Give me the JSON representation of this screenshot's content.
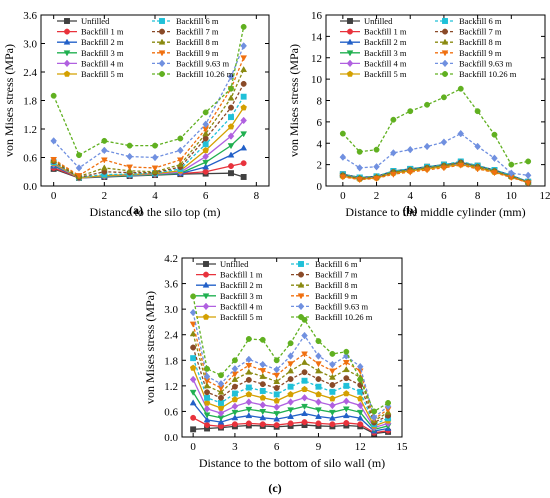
{
  "legend_entries": [
    "Unfilled",
    "Backfill 1 m",
    "Backfill 2 m",
    "Backfill 3 m",
    "Backfill 4 m",
    "Backfill 5 m",
    "Backfill 6 m",
    "Backfill 7 m",
    "Backfill 8 m",
    "Backfill 9 m",
    "Backfill 9.63 m",
    "Backfill 10.26 m"
  ],
  "series_style": [
    {
      "color": "#404040",
      "marker": "square",
      "dash": false
    },
    {
      "color": "#e8323c",
      "marker": "circle",
      "dash": false
    },
    {
      "color": "#2260c8",
      "marker": "triangle",
      "dash": false
    },
    {
      "color": "#20b050",
      "marker": "triangle-down",
      "dash": false
    },
    {
      "color": "#b060e0",
      "marker": "diamond",
      "dash": false
    },
    {
      "color": "#d4a000",
      "marker": "pentagon",
      "dash": false
    },
    {
      "color": "#20c0d8",
      "marker": "square",
      "dash": true
    },
    {
      "color": "#8a4a28",
      "marker": "circle",
      "dash": true
    },
    {
      "color": "#8a8a10",
      "marker": "triangle",
      "dash": true
    },
    {
      "color": "#f07010",
      "marker": "triangle-down",
      "dash": true
    },
    {
      "color": "#7090e0",
      "marker": "diamond",
      "dash": true
    },
    {
      "color": "#60b020",
      "marker": "circle",
      "dash": true
    }
  ],
  "chart_data": [
    {
      "type": "line",
      "panel_label": "(a)",
      "xlabel": "Distance to the silo top (m)",
      "ylabel": "von Mises stress (MPa)",
      "xlim": [
        -0.5,
        8.5
      ],
      "ylim": [
        0,
        3.6
      ],
      "xticks": [
        0,
        2,
        4,
        6,
        8
      ],
      "yticks": [
        0.0,
        0.6,
        1.2,
        1.8,
        2.4,
        3.0,
        3.6
      ],
      "ytick_labels": [
        "0.0",
        "0.6",
        "1.2",
        "1.8",
        "2.4",
        "3.0",
        "3.6"
      ],
      "legend_position": "top-left",
      "x": [
        0,
        1,
        2,
        3,
        4,
        5,
        6,
        7,
        7.5
      ],
      "series": [
        {
          "name": "Unfilled",
          "values": [
            0.36,
            0.17,
            0.19,
            0.21,
            0.23,
            0.25,
            0.26,
            0.27,
            0.19
          ]
        },
        {
          "name": "Backfill 1 m",
          "values": [
            0.38,
            0.18,
            0.2,
            0.22,
            0.24,
            0.26,
            0.3,
            0.42,
            0.48
          ]
        },
        {
          "name": "Backfill 2 m",
          "values": [
            0.42,
            0.18,
            0.2,
            0.22,
            0.24,
            0.26,
            0.4,
            0.65,
            0.8
          ]
        },
        {
          "name": "Backfill 3 m",
          "values": [
            0.44,
            0.18,
            0.2,
            0.22,
            0.24,
            0.27,
            0.5,
            0.85,
            1.1
          ]
        },
        {
          "name": "Backfill 4 m",
          "values": [
            0.46,
            0.17,
            0.21,
            0.23,
            0.25,
            0.29,
            0.62,
            1.05,
            1.38
          ]
        },
        {
          "name": "Backfill 5 m",
          "values": [
            0.48,
            0.17,
            0.22,
            0.24,
            0.26,
            0.32,
            0.75,
            1.25,
            1.65
          ]
        },
        {
          "name": "Backfill 6 m",
          "values": [
            0.5,
            0.18,
            0.24,
            0.25,
            0.27,
            0.36,
            0.88,
            1.45,
            1.88
          ]
        },
        {
          "name": "Backfill 7 m",
          "values": [
            0.52,
            0.18,
            0.3,
            0.28,
            0.28,
            0.4,
            1.0,
            1.65,
            2.15
          ]
        },
        {
          "name": "Backfill 8 m",
          "values": [
            0.54,
            0.2,
            0.38,
            0.32,
            0.3,
            0.45,
            1.1,
            1.85,
            2.45
          ]
        },
        {
          "name": "Backfill 9 m",
          "values": [
            0.56,
            0.22,
            0.55,
            0.4,
            0.38,
            0.55,
            1.2,
            2.05,
            2.7
          ]
        },
        {
          "name": "Backfill 9.63 m",
          "values": [
            0.95,
            0.38,
            0.75,
            0.62,
            0.6,
            0.75,
            1.3,
            2.3,
            2.95
          ]
        },
        {
          "name": "Backfill 10.26 m",
          "values": [
            1.9,
            0.65,
            0.95,
            0.85,
            0.85,
            1.0,
            1.55,
            2.05,
            3.35
          ]
        }
      ]
    },
    {
      "type": "line",
      "panel_label": "(b)",
      "xlabel": "Distance to the middle cylinder (mm)",
      "ylabel": "von Mises stress (MPa)",
      "xlim": [
        -1,
        12
      ],
      "ylim": [
        0,
        16
      ],
      "xticks": [
        0,
        2,
        4,
        6,
        8,
        10,
        12
      ],
      "yticks": [
        0,
        2,
        4,
        6,
        8,
        10,
        12,
        14,
        16
      ],
      "ytick_labels": [
        "0",
        "2",
        "4",
        "6",
        "8",
        "10",
        "12",
        "14",
        "16"
      ],
      "legend_position": "top",
      "x": [
        0,
        1,
        2,
        3,
        4,
        5,
        6,
        7,
        8,
        9,
        10,
        11
      ],
      "series": [
        {
          "name": "Unfilled",
          "values": [
            1.1,
            0.8,
            0.9,
            1.4,
            1.6,
            1.8,
            2.0,
            2.2,
            1.9,
            1.5,
            1.0,
            0.4
          ]
        },
        {
          "name": "Backfill 1 m",
          "values": [
            1.0,
            0.7,
            0.8,
            1.3,
            1.5,
            1.7,
            1.9,
            2.1,
            1.8,
            1.4,
            0.9,
            0.35
          ]
        },
        {
          "name": "Backfill 2 m",
          "values": [
            1.05,
            0.75,
            0.85,
            1.35,
            1.55,
            1.75,
            1.95,
            2.15,
            1.85,
            1.45,
            0.95,
            0.38
          ]
        },
        {
          "name": "Backfill 3 m",
          "values": [
            1.0,
            0.7,
            0.8,
            1.3,
            1.5,
            1.7,
            1.9,
            2.1,
            1.8,
            1.4,
            0.9,
            0.35
          ]
        },
        {
          "name": "Backfill 4 m",
          "values": [
            0.95,
            0.7,
            0.8,
            1.25,
            1.45,
            1.65,
            1.85,
            2.05,
            1.75,
            1.35,
            0.88,
            0.33
          ]
        },
        {
          "name": "Backfill 5 m",
          "values": [
            0.9,
            0.65,
            0.75,
            1.2,
            1.4,
            1.6,
            1.8,
            2.0,
            1.7,
            1.3,
            0.85,
            0.32
          ]
        },
        {
          "name": "Backfill 6 m",
          "values": [
            1.1,
            0.8,
            0.9,
            1.4,
            1.6,
            1.8,
            2.0,
            2.3,
            1.9,
            1.5,
            1.0,
            0.4
          ]
        },
        {
          "name": "Backfill 7 m",
          "values": [
            1.0,
            0.7,
            0.8,
            1.3,
            1.5,
            1.7,
            1.9,
            2.2,
            1.8,
            1.4,
            0.9,
            0.35
          ]
        },
        {
          "name": "Backfill 8 m",
          "values": [
            1.0,
            0.75,
            0.85,
            1.3,
            1.5,
            1.7,
            1.9,
            2.15,
            1.8,
            1.4,
            0.9,
            0.35
          ]
        },
        {
          "name": "Backfill 9 m",
          "values": [
            0.85,
            0.6,
            0.7,
            1.1,
            1.3,
            1.5,
            1.7,
            1.95,
            1.6,
            1.25,
            0.8,
            0.3
          ]
        },
        {
          "name": "Backfill 9.63 m",
          "values": [
            2.7,
            1.7,
            1.8,
            3.1,
            3.4,
            3.7,
            4.1,
            4.9,
            3.7,
            2.6,
            1.2,
            1.0
          ]
        },
        {
          "name": "Backfill 10.26 m",
          "values": [
            4.9,
            3.2,
            3.4,
            6.2,
            7.0,
            7.6,
            8.3,
            9.1,
            7.0,
            4.8,
            2.0,
            2.3
          ]
        }
      ]
    },
    {
      "type": "line",
      "panel_label": "(c)",
      "xlabel": "Distance to the bottom of silo wall (m)",
      "ylabel": "von Mises stress (MPa)",
      "xlim": [
        -0.8,
        15
      ],
      "ylim": [
        0,
        4.2
      ],
      "xticks": [
        0,
        3,
        6,
        9,
        12,
        15
      ],
      "yticks": [
        0.0,
        0.6,
        1.2,
        1.8,
        2.4,
        3.0,
        3.6,
        4.2
      ],
      "ytick_labels": [
        "0.0",
        "0.6",
        "1.2",
        "1.8",
        "2.4",
        "3.0",
        "3.6",
        "4.2"
      ],
      "legend_position": "top",
      "x": [
        0,
        1,
        2,
        3,
        4,
        5,
        6,
        7,
        8,
        9,
        10,
        11,
        12,
        13,
        14
      ],
      "series": [
        {
          "name": "Unfilled",
          "values": [
            0.18,
            0.2,
            0.22,
            0.25,
            0.27,
            0.26,
            0.24,
            0.26,
            0.28,
            0.26,
            0.25,
            0.27,
            0.25,
            0.08,
            0.12
          ]
        },
        {
          "name": "Backfill 1 m",
          "values": [
            0.45,
            0.28,
            0.25,
            0.3,
            0.32,
            0.3,
            0.28,
            0.32,
            0.35,
            0.32,
            0.3,
            0.33,
            0.3,
            0.1,
            0.15
          ]
        },
        {
          "name": "Backfill 2 m",
          "values": [
            0.8,
            0.4,
            0.35,
            0.45,
            0.5,
            0.45,
            0.42,
            0.48,
            0.55,
            0.48,
            0.44,
            0.5,
            0.44,
            0.14,
            0.2
          ]
        },
        {
          "name": "Backfill 3 m",
          "values": [
            1.05,
            0.52,
            0.45,
            0.58,
            0.65,
            0.6,
            0.55,
            0.64,
            0.72,
            0.64,
            0.58,
            0.66,
            0.58,
            0.18,
            0.26
          ]
        },
        {
          "name": "Backfill 4 m",
          "values": [
            1.35,
            0.66,
            0.56,
            0.72,
            0.82,
            0.75,
            0.7,
            0.82,
            0.92,
            0.82,
            0.74,
            0.84,
            0.74,
            0.22,
            0.32
          ]
        },
        {
          "name": "Backfill 5 m",
          "values": [
            1.62,
            0.8,
            0.68,
            0.88,
            1.0,
            0.92,
            0.85,
            1.0,
            1.12,
            1.0,
            0.9,
            1.02,
            0.9,
            0.26,
            0.38
          ]
        },
        {
          "name": "Backfill 6 m",
          "values": [
            1.85,
            0.92,
            0.8,
            1.02,
            1.16,
            1.08,
            1.0,
            1.18,
            1.32,
            1.18,
            1.06,
            1.2,
            1.06,
            0.3,
            0.44
          ]
        },
        {
          "name": "Backfill 7 m",
          "values": [
            2.1,
            1.05,
            0.92,
            1.18,
            1.34,
            1.24,
            1.15,
            1.36,
            1.52,
            1.36,
            1.22,
            1.38,
            1.22,
            0.34,
            0.5
          ]
        },
        {
          "name": "Backfill 8 m",
          "values": [
            2.42,
            1.2,
            1.05,
            1.35,
            1.52,
            1.42,
            1.3,
            1.55,
            1.75,
            1.55,
            1.4,
            1.58,
            1.4,
            0.38,
            0.58
          ]
        },
        {
          "name": "Backfill 9 m",
          "values": [
            2.65,
            1.32,
            1.15,
            1.48,
            1.68,
            1.56,
            1.45,
            1.72,
            1.95,
            1.72,
            1.55,
            1.75,
            1.55,
            0.42,
            0.65
          ]
        },
        {
          "name": "Backfill 9.63 m",
          "values": [
            2.92,
            1.42,
            1.25,
            1.6,
            1.82,
            1.7,
            1.58,
            1.9,
            2.38,
            1.9,
            1.7,
            1.9,
            1.65,
            0.46,
            0.72
          ]
        },
        {
          "name": "Backfill 10.26 m",
          "values": [
            3.3,
            1.6,
            1.45,
            1.8,
            2.3,
            2.28,
            1.8,
            2.2,
            2.75,
            2.25,
            1.95,
            2.0,
            1.35,
            0.6,
            0.8
          ]
        }
      ]
    }
  ]
}
